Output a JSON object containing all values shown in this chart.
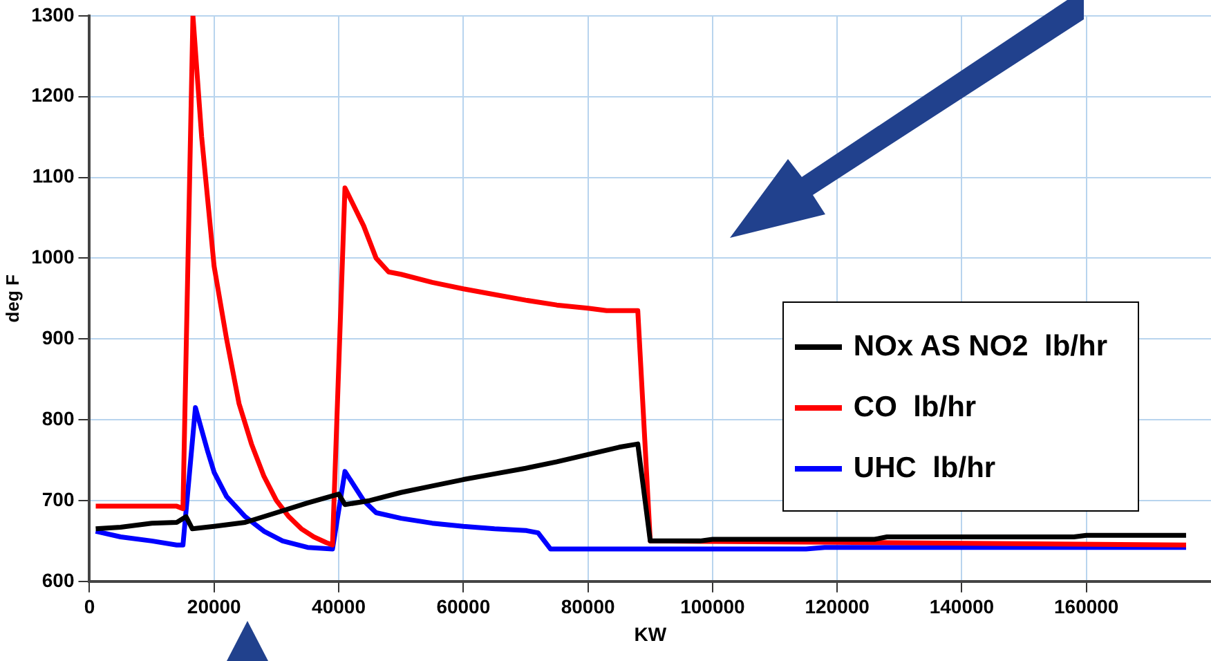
{
  "chart_data": {
    "type": "line",
    "xlabel": "KW",
    "ylabel": "deg F",
    "xlim": [
      0,
      180000
    ],
    "xticks": [
      0,
      20000,
      40000,
      60000,
      80000,
      100000,
      120000,
      140000,
      160000
    ],
    "ylim": [
      600,
      1300
    ],
    "yticks": [
      600,
      700,
      800,
      900,
      1000,
      1100,
      1200,
      1300
    ],
    "grid": true,
    "legend": "right",
    "marker": "none",
    "line_style": "solid",
    "series": [
      {
        "name": "NOx AS NO2  lb/hr",
        "color": "#000000",
        "x": [
          1000,
          5000,
          10000,
          14000,
          15500,
          16500,
          20000,
          25000,
          30000,
          35000,
          40000,
          41000,
          45000,
          50000,
          55000,
          60000,
          65000,
          70000,
          75000,
          80000,
          85000,
          88000,
          90000,
          98000,
          100000,
          126000,
          128000,
          158000,
          160000,
          176000
        ],
        "values": [
          665,
          667,
          672,
          673,
          680,
          665,
          668,
          673,
          685,
          697,
          708,
          695,
          700,
          710,
          718,
          726,
          733,
          740,
          748,
          757,
          766,
          770,
          650,
          650,
          652,
          652,
          655,
          655,
          657,
          657
        ]
      },
      {
        "name": "CO  lb/hr",
        "color": "#ff0000",
        "x": [
          1000,
          14000,
          15000,
          16600,
          18000,
          20000,
          22000,
          24000,
          26000,
          28000,
          30000,
          32000,
          34000,
          36000,
          38000,
          39000,
          41000,
          44000,
          46000,
          48000,
          50000,
          55000,
          60000,
          65000,
          70000,
          75000,
          80000,
          83000,
          88000,
          90000,
          176000
        ],
        "values": [
          693,
          693,
          690,
          1300,
          1150,
          990,
          900,
          820,
          770,
          730,
          700,
          680,
          665,
          655,
          648,
          645,
          1087,
          1040,
          1000,
          983,
          980,
          970,
          962,
          955,
          948,
          942,
          938,
          935,
          935,
          650,
          645
        ]
      },
      {
        "name": "UHC  lb/hr",
        "color": "#0000ff",
        "x": [
          1000,
          5000,
          10000,
          14000,
          15000,
          17000,
          19000,
          20000,
          22000,
          25000,
          28000,
          31000,
          35000,
          39000,
          41000,
          44000,
          46000,
          50000,
          55000,
          60000,
          65000,
          70000,
          72000,
          74000,
          100000,
          115000,
          118000,
          176000
        ],
        "values": [
          662,
          655,
          650,
          645,
          645,
          815,
          760,
          735,
          705,
          680,
          662,
          650,
          642,
          640,
          736,
          700,
          685,
          678,
          672,
          668,
          665,
          663,
          660,
          640,
          640,
          640,
          642,
          642
        ]
      }
    ]
  }
}
